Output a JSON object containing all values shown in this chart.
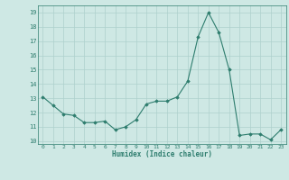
{
  "xlabel": "Humidex (Indice chaleur)",
  "ylabel": "",
  "x": [
    0,
    1,
    2,
    3,
    4,
    5,
    6,
    7,
    8,
    9,
    10,
    11,
    12,
    13,
    14,
    15,
    16,
    17,
    18,
    19,
    20,
    21,
    22,
    23
  ],
  "y": [
    13.1,
    12.5,
    11.9,
    11.8,
    11.3,
    11.3,
    11.4,
    10.8,
    11.0,
    11.5,
    12.6,
    12.8,
    12.8,
    13.1,
    14.2,
    17.3,
    19.0,
    17.6,
    15.0,
    10.4,
    10.5,
    10.5,
    10.1,
    10.8
  ],
  "line_color": "#2e7d6e",
  "marker": "D",
  "marker_size": 1.8,
  "bg_color": "#cee8e4",
  "grid_color": "#aed0cc",
  "text_color": "#2e7d6e",
  "ylim": [
    9.8,
    19.5
  ],
  "xlim": [
    -0.5,
    23.5
  ],
  "yticks": [
    10,
    11,
    12,
    13,
    14,
    15,
    16,
    17,
    18,
    19
  ],
  "xticks": [
    0,
    1,
    2,
    3,
    4,
    5,
    6,
    7,
    8,
    9,
    10,
    11,
    12,
    13,
    14,
    15,
    16,
    17,
    18,
    19,
    20,
    21,
    22,
    23
  ]
}
